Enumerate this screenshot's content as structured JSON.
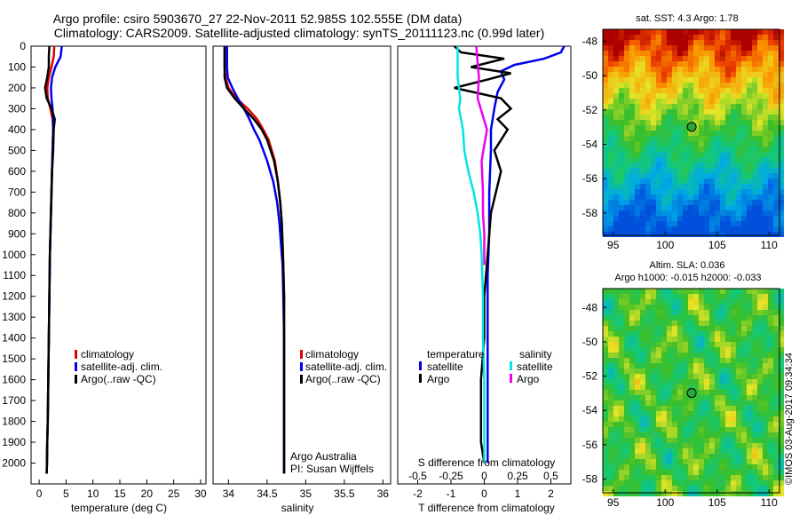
{
  "header": {
    "line1": "Argo profile: csiro 5903670_27 22-Nov-2011 52.985S 102.555E (DM data)",
    "line2": "Climatology: CARS2009. Satellite-adjusted climatology: synTS_20111123.nc (0.99d later)"
  },
  "colors": {
    "climatology": "#e00000",
    "satellite": "#0000ee",
    "argo": "#000000",
    "sat_salinity": "#00e5e5",
    "argo_salinity": "#ee00ee"
  },
  "chart_data": [
    {
      "type": "line",
      "panel": "temperature",
      "xlabel": "temperature (deg C)",
      "xlim": [
        -1.5,
        31
      ],
      "ylim": [
        2100,
        0
      ],
      "xticks": [
        0,
        5,
        10,
        15,
        20,
        25,
        30
      ],
      "yticks": [
        0,
        100,
        200,
        300,
        400,
        500,
        600,
        700,
        800,
        900,
        1000,
        1100,
        1200,
        1300,
        1400,
        1500,
        1600,
        1700,
        1800,
        1900,
        2000
      ],
      "legend": [
        "climatology",
        "satellite-adj. clim.",
        "Argo(..raw -QC)"
      ],
      "series": [
        {
          "name": "climatology",
          "color": "#e00000",
          "x": [
            2.8,
            2.7,
            2.3,
            1.8,
            1.5,
            1.6,
            2.1,
            2.5,
            2.6,
            2.5,
            2.4,
            2.3,
            2.2,
            2.1,
            2.0,
            1.9,
            1.8,
            1.7,
            1.6,
            1.5,
            1.45,
            1.4
          ],
          "y": [
            0,
            50,
            100,
            150,
            200,
            250,
            300,
            350,
            400,
            500,
            600,
            700,
            800,
            900,
            1000,
            1200,
            1400,
            1600,
            1800,
            1900,
            2000,
            2050
          ]
        },
        {
          "name": "satellite-adj. clim.",
          "color": "#0000ee",
          "x": [
            4.2,
            4.0,
            3.0,
            2.4,
            2.2,
            2.3,
            2.5,
            2.6,
            2.6,
            2.5,
            2.4,
            2.3,
            2.2,
            2.1,
            2.0,
            1.9,
            1.8,
            1.7,
            1.6,
            1.5,
            1.45,
            1.4
          ],
          "y": [
            0,
            50,
            100,
            150,
            200,
            250,
            300,
            350,
            400,
            500,
            600,
            700,
            800,
            900,
            1000,
            1200,
            1400,
            1600,
            1800,
            1900,
            2000,
            2050
          ]
        },
        {
          "name": "Argo(..raw -QC)",
          "color": "#000000",
          "x": [
            1.9,
            1.8,
            1.8,
            1.5,
            1.1,
            1.4,
            2.3,
            2.9,
            2.7,
            2.6,
            2.4,
            2.3,
            2.2,
            2.1,
            2.0,
            1.9,
            1.8,
            1.7,
            1.6,
            1.5,
            1.45,
            1.4
          ],
          "y": [
            0,
            50,
            100,
            150,
            200,
            250,
            300,
            350,
            400,
            500,
            600,
            700,
            800,
            900,
            1000,
            1200,
            1400,
            1600,
            1800,
            1900,
            2000,
            2050
          ]
        }
      ]
    },
    {
      "type": "line",
      "panel": "salinity",
      "xlabel": "salinity",
      "xlim": [
        33.8,
        36.1
      ],
      "ylim": [
        2100,
        0
      ],
      "xticks": [
        34,
        34.5,
        35,
        35.5,
        36
      ],
      "xticklabels": [
        "34",
        "34.5",
        "35",
        "35.5",
        "36"
      ],
      "legend": [
        "climatology",
        "satellite-adj. clim.",
        "Argo(..raw -QC)"
      ],
      "annotation": [
        "Argo Australia",
        "PI: Susan Wijffels"
      ],
      "series": [
        {
          "name": "climatology",
          "color": "#e00000",
          "x": [
            33.95,
            33.95,
            33.96,
            34.0,
            34.1,
            34.25,
            34.37,
            34.45,
            34.52,
            34.6,
            34.64,
            34.67,
            34.69,
            34.7,
            34.71,
            34.72,
            34.72,
            34.72,
            34.72,
            34.72,
            34.72
          ],
          "y": [
            0,
            100,
            150,
            200,
            250,
            300,
            350,
            400,
            450,
            550,
            650,
            750,
            850,
            950,
            1050,
            1200,
            1400,
            1600,
            1800,
            2000,
            2050
          ]
        },
        {
          "name": "satellite-adj. clim.",
          "color": "#0000ee",
          "x": [
            33.98,
            33.98,
            33.99,
            34.05,
            34.12,
            34.2,
            34.27,
            34.33,
            34.4,
            34.5,
            34.58,
            34.63,
            34.66,
            34.68,
            34.7,
            34.71,
            34.72,
            34.72,
            34.72,
            34.72,
            34.72
          ],
          "y": [
            0,
            100,
            150,
            200,
            250,
            300,
            350,
            400,
            450,
            550,
            650,
            750,
            850,
            950,
            1050,
            1200,
            1400,
            1600,
            1800,
            2000,
            2050
          ]
        },
        {
          "name": "Argo(..raw -QC)",
          "color": "#000000",
          "x": [
            33.95,
            33.95,
            33.95,
            33.98,
            34.08,
            34.2,
            34.33,
            34.43,
            34.5,
            34.59,
            34.64,
            34.67,
            34.69,
            34.7,
            34.71,
            34.72,
            34.72,
            34.72,
            34.72,
            34.72,
            34.72
          ],
          "y": [
            0,
            100,
            150,
            200,
            250,
            300,
            350,
            400,
            450,
            550,
            650,
            750,
            850,
            950,
            1050,
            1200,
            1400,
            1600,
            1800,
            2000,
            2050
          ]
        }
      ]
    },
    {
      "type": "line",
      "panel": "differences",
      "xlabel": "T difference from climatology",
      "xlabel_top": "S difference from climatology",
      "xlim": [
        -2.6,
        2.6
      ],
      "xticks": [
        -2,
        -1,
        0,
        1,
        2
      ],
      "sticks": [
        -0.5,
        -0.25,
        0,
        0.25,
        0.5
      ],
      "sticklabels": [
        "-0.5",
        "-0.25",
        "0",
        "0.25",
        "0.5"
      ],
      "legend_title_t": "temperature",
      "legend_title_s": "salinity",
      "legend": [
        "satellite",
        "Argo",
        "satellite",
        "Argo"
      ],
      "series": [
        {
          "name": "satellite",
          "quantity": "temperature",
          "color": "#0000ee",
          "x": [
            2.4,
            2.3,
            1.8,
            0.9,
            0.5,
            0.6,
            0.4,
            0.3,
            0.2,
            0.2,
            0.15,
            0.15,
            0.1,
            0.1,
            0.1,
            0.1,
            0.1,
            0.1,
            0.1,
            0.1
          ],
          "y": [
            0,
            30,
            60,
            90,
            120,
            160,
            220,
            300,
            400,
            500,
            700,
            900,
            1100,
            1300,
            1500,
            1600,
            1700,
            1800,
            1900,
            2000
          ]
        },
        {
          "name": "Argo",
          "quantity": "temperature",
          "color": "#000000",
          "x": [
            -0.9,
            -0.7,
            0.6,
            -0.4,
            0.8,
            0.1,
            -0.9,
            0.5,
            0.8,
            0.4,
            0.7,
            0.3,
            0.5,
            0.2,
            0.1,
            0.0,
            0.0,
            -0.1,
            -0.1,
            -0.1,
            0.0
          ],
          "y": [
            0,
            30,
            60,
            100,
            130,
            160,
            200,
            250,
            300,
            350,
            400,
            500,
            600,
            800,
            1000,
            1200,
            1400,
            1600,
            1800,
            1900,
            2000
          ]
        },
        {
          "name": "satellite",
          "quantity": "salinity",
          "color": "#00e5e5",
          "x": [
            -0.2,
            -0.2,
            -0.18,
            -0.19,
            -0.16,
            -0.15,
            -0.12,
            -0.08,
            -0.05,
            -0.03,
            -0.02,
            -0.01,
            -0.01,
            0.0,
            0.0,
            0.0
          ],
          "y": [
            0,
            150,
            250,
            300,
            400,
            500,
            600,
            700,
            800,
            900,
            1000,
            1200,
            1400,
            1600,
            1800,
            2000
          ]
        },
        {
          "name": "Argo",
          "quantity": "salinity",
          "color": "#ee00ee",
          "x": [
            -0.06,
            -0.05,
            -0.04,
            -0.05,
            0.02,
            -0.02,
            -0.01,
            -0.01,
            0.0,
            0.0,
            0.0
          ],
          "y": [
            0,
            80,
            150,
            250,
            400,
            550,
            700,
            800,
            900,
            1000,
            1050
          ]
        }
      ]
    },
    {
      "type": "heatmap",
      "panel": "sst_map",
      "title": "sat. SST: 4.3 Argo: 1.78",
      "xticks": [
        95,
        100,
        105,
        110
      ],
      "yticks": [
        -48,
        -50,
        -52,
        -54,
        -56,
        -58
      ],
      "xlim": [
        94,
        111
      ],
      "ylim": [
        -59.3,
        -47.3
      ],
      "marker": {
        "lon": 102.555,
        "lat": -52.985
      }
    },
    {
      "type": "heatmap",
      "panel": "sla_map",
      "title": "Altim. SLA: 0.036",
      "subtitle": "Argo h1000: -0.015 h2000: -0.033",
      "xticks": [
        95,
        100,
        105,
        110
      ],
      "yticks": [
        -48,
        -50,
        -52,
        -54,
        -56,
        -58
      ],
      "xlim": [
        94,
        111
      ],
      "ylim": [
        -58.8,
        -46.9
      ],
      "marker": {
        "lon": 102.555,
        "lat": -52.985
      }
    }
  ],
  "credit": "©IMOS 03-Aug-2017 09:34:34"
}
